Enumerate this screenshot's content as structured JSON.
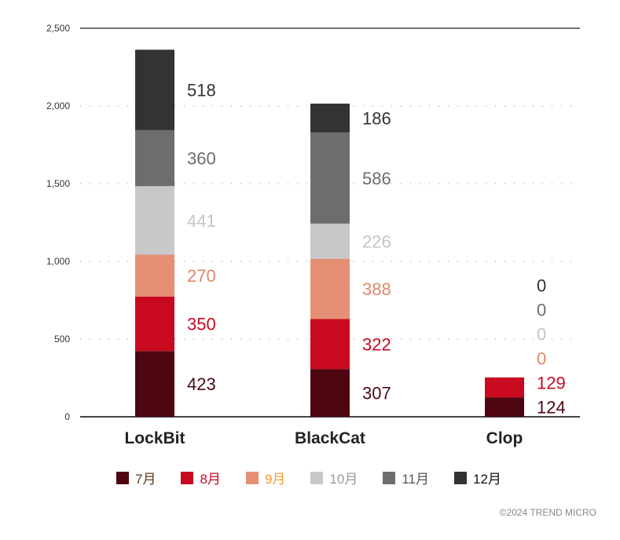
{
  "chart_data": {
    "type": "bar",
    "stacked": true,
    "categories": [
      "LockBit",
      "BlackCat",
      "Clop"
    ],
    "series": [
      {
        "name": "7月",
        "values": [
          423,
          307,
          124
        ],
        "color": "#4e0610",
        "label_color": "#4a0a10",
        "legend_text_color": "#5a3a1a"
      },
      {
        "name": "8月",
        "values": [
          350,
          322,
          129
        ],
        "color": "#c8091f",
        "label_color": "#c8091f",
        "legend_text_color": "#c8091f"
      },
      {
        "name": "9月",
        "values": [
          270,
          388,
          0
        ],
        "color": "#e58f74",
        "label_color": "#e0876a",
        "legend_text_color": "#f29a3a"
      },
      {
        "name": "10月",
        "values": [
          441,
          226,
          0
        ],
        "color": "#c8c8ca",
        "label_color": "#c4c4c6",
        "legend_text_color": "#999999"
      },
      {
        "name": "11月",
        "values": [
          360,
          586,
          0
        ],
        "color": "#6d6d6d",
        "label_color": "#6d6d6d",
        "legend_text_color": "#555555"
      },
      {
        "name": "12月",
        "values": [
          518,
          186,
          0
        ],
        "color": "#333333",
        "label_color": "#333333",
        "legend_text_color": "#111111"
      }
    ],
    "ylim": [
      0,
      2500
    ],
    "yticks": [
      0,
      500,
      1000,
      1500,
      2000,
      2500
    ],
    "ytick_labels": [
      "0",
      "500",
      "1,000",
      "1,500",
      "2,000",
      "2,500"
    ],
    "grid": "dotted",
    "legend": "bottom"
  },
  "credit": "©2024 TREND MICRO"
}
